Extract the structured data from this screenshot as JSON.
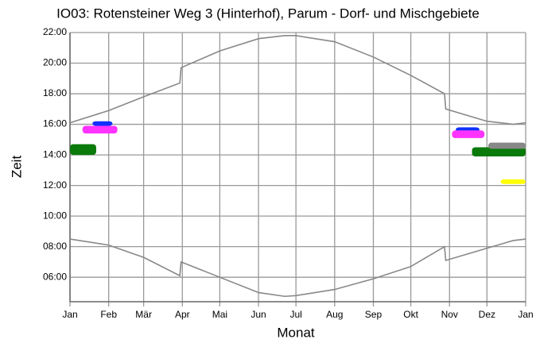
{
  "chart_data": {
    "type": "line",
    "title": "IO03: Rotensteiner Weg 3 (Hinterhof), Parum - Dorf- und Mischgebiete",
    "xlabel": "Monat",
    "ylabel": "Zeit",
    "xlim": [
      0,
      365
    ],
    "ylim": [
      4.4,
      22
    ],
    "xticks": [
      {
        "value": 0,
        "label": "Jan"
      },
      {
        "value": 31,
        "label": "Feb"
      },
      {
        "value": 59,
        "label": "Mär"
      },
      {
        "value": 90,
        "label": "Apr"
      },
      {
        "value": 120,
        "label": "Mai"
      },
      {
        "value": 151,
        "label": "Jun"
      },
      {
        "value": 181,
        "label": "Jul"
      },
      {
        "value": 212,
        "label": "Aug"
      },
      {
        "value": 243,
        "label": "Sep"
      },
      {
        "value": 273,
        "label": "Okt"
      },
      {
        "value": 304,
        "label": "Nov"
      },
      {
        "value": 334,
        "label": "Dez"
      },
      {
        "value": 365,
        "label": "Jan"
      }
    ],
    "yticks": [
      {
        "value": 6,
        "label": "06:00"
      },
      {
        "value": 8,
        "label": "08:00"
      },
      {
        "value": 10,
        "label": "10:00"
      },
      {
        "value": 12,
        "label": "12:00"
      },
      {
        "value": 14,
        "label": "14:00"
      },
      {
        "value": 16,
        "label": "16:00"
      },
      {
        "value": 18,
        "label": "18:00"
      },
      {
        "value": 20,
        "label": "20:00"
      },
      {
        "value": 22,
        "label": "22:00"
      }
    ],
    "grid": true,
    "lines": [
      {
        "color": "#888888",
        "x": [
          0,
          31,
          59,
          88,
          89,
          120,
          151,
          172,
          181,
          212,
          243,
          273,
          300,
          301,
          334,
          355,
          365
        ],
        "values": [
          16.1,
          16.9,
          17.8,
          18.7,
          19.7,
          20.8,
          21.6,
          21.8,
          21.8,
          21.4,
          20.4,
          19.2,
          18.0,
          17.0,
          16.2,
          16.0,
          16.1
        ]
      },
      {
        "color": "#888888",
        "x": [
          0,
          31,
          59,
          88,
          89,
          120,
          151,
          172,
          181,
          212,
          243,
          273,
          300,
          301,
          334,
          355,
          365
        ],
        "values": [
          8.5,
          8.1,
          7.3,
          6.1,
          7.0,
          6.0,
          5.0,
          4.75,
          4.8,
          5.2,
          5.9,
          6.7,
          8.0,
          7.1,
          7.9,
          8.4,
          8.5
        ]
      }
    ],
    "shadows": [
      {
        "color": "#0a7a0a",
        "x": [
          0,
          21
        ],
        "y": [
          14.0,
          14.7
        ]
      },
      {
        "color": "#ff33ff",
        "x": [
          10,
          38
        ],
        "y": [
          15.4,
          15.9
        ]
      },
      {
        "color": "#1030ff",
        "x": [
          18,
          34
        ],
        "y": [
          15.9,
          16.2
        ]
      },
      {
        "color": "#1030ff",
        "x": [
          309,
          328
        ],
        "y": [
          15.5,
          15.8
        ]
      },
      {
        "color": "#ff33ff",
        "x": [
          306,
          332
        ],
        "y": [
          15.1,
          15.6
        ]
      },
      {
        "color": "#0a7a0a",
        "x": [
          322,
          365
        ],
        "y": [
          13.9,
          14.5
        ]
      },
      {
        "color": "#888888",
        "x": [
          335,
          365
        ],
        "y": [
          14.4,
          14.8
        ]
      },
      {
        "color": "#ffff00",
        "x": [
          345,
          365
        ],
        "y": [
          12.1,
          12.4
        ]
      }
    ]
  }
}
